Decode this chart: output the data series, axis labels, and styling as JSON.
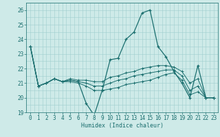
{
  "xlabel": "Humidex (Indice chaleur)",
  "bg_color": "#ceeae8",
  "grid_color": "#9ecece",
  "line_color": "#1a6e6e",
  "x": [
    0,
    1,
    2,
    3,
    4,
    5,
    6,
    7,
    8,
    9,
    10,
    11,
    12,
    13,
    14,
    15,
    16,
    17,
    18,
    19,
    20,
    21,
    22,
    23
  ],
  "lines": [
    [
      23.5,
      20.8,
      21.0,
      21.3,
      21.1,
      21.2,
      21.1,
      19.6,
      18.8,
      20.5,
      22.6,
      22.7,
      24.0,
      24.5,
      25.8,
      26.0,
      23.5,
      22.8,
      21.8,
      21.0,
      20.0,
      22.2,
      20.0,
      20.0
    ],
    [
      23.5,
      20.8,
      21.0,
      21.3,
      21.1,
      21.3,
      21.2,
      21.2,
      21.1,
      21.1,
      21.4,
      21.5,
      21.7,
      21.8,
      22.0,
      22.1,
      22.2,
      22.2,
      22.1,
      21.8,
      21.0,
      21.3,
      20.0,
      20.0
    ],
    [
      23.5,
      20.8,
      21.0,
      21.3,
      21.1,
      21.2,
      21.1,
      21.0,
      20.8,
      20.8,
      21.0,
      21.2,
      21.3,
      21.5,
      21.6,
      21.7,
      21.8,
      21.9,
      21.9,
      21.5,
      20.5,
      20.8,
      20.0,
      20.0
    ],
    [
      23.5,
      20.8,
      21.0,
      21.3,
      21.1,
      21.1,
      21.0,
      20.8,
      20.5,
      20.5,
      20.6,
      20.7,
      20.9,
      21.0,
      21.1,
      21.2,
      21.4,
      21.6,
      21.7,
      21.2,
      20.2,
      20.4,
      20.0,
      20.0
    ]
  ],
  "ylim": [
    19,
    26.5
  ],
  "yticks": [
    19,
    20,
    21,
    22,
    23,
    24,
    25,
    26
  ],
  "xlim": [
    -0.5,
    23.5
  ]
}
